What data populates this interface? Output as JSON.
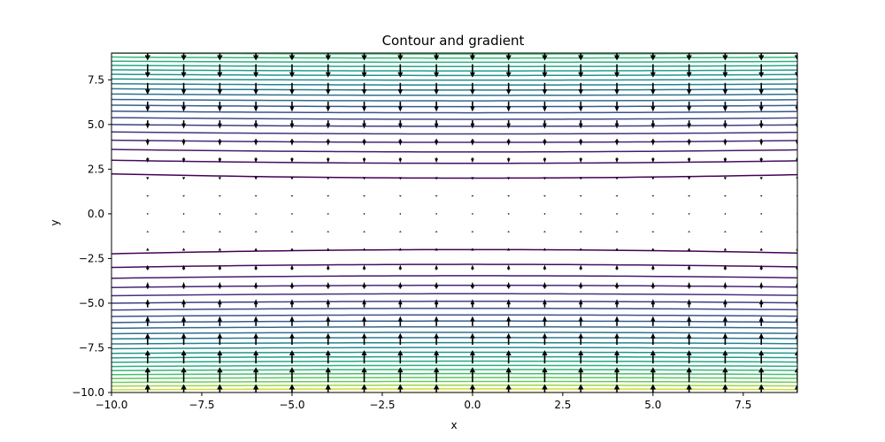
{
  "chart_data": {
    "type": "contour",
    "title": "Contour and gradient",
    "xlabel": "x",
    "ylabel": "y",
    "xlim": [
      -10,
      9
    ],
    "ylim": [
      -10,
      9
    ],
    "x_ticks": [
      -10.0,
      -7.5,
      -5.0,
      -2.5,
      0.0,
      2.5,
      5.0,
      7.5
    ],
    "x_tick_labels": [
      "−10.0",
      "−7.5",
      "−5.0",
      "−2.5",
      "0.0",
      "2.5",
      "5.0",
      "7.5"
    ],
    "y_ticks": [
      -10.0,
      -7.5,
      -5.0,
      -2.5,
      0.0,
      2.5,
      5.0,
      7.5
    ],
    "y_tick_labels": [
      "−10.0",
      "−7.5",
      "−5.0",
      "−2.5",
      "0.0",
      "2.5",
      "5.0",
      "7.5"
    ],
    "colormap": "viridis",
    "field": "f(x, y) = y^2 - 0.01*x^2 (approx.)",
    "contour_levels": [
      4,
      8,
      12,
      16,
      20,
      24,
      28,
      32,
      36,
      40,
      44,
      48,
      52,
      56,
      60,
      64,
      68,
      72,
      76,
      80,
      84,
      88,
      92,
      96,
      100
    ],
    "quiver_x": [
      -9,
      -8,
      -7,
      -6,
      -5,
      -4,
      -3,
      -2,
      -1,
      0,
      1,
      2,
      3,
      4,
      5,
      6,
      7,
      8,
      9
    ],
    "quiver_y": [
      -10,
      -9,
      -8,
      -7,
      -6,
      -5,
      -4,
      -3,
      -2,
      -1,
      0,
      1,
      2,
      3,
      4,
      5,
      6,
      7,
      8,
      9
    ],
    "quiver_color": "#000000",
    "grid": false
  }
}
